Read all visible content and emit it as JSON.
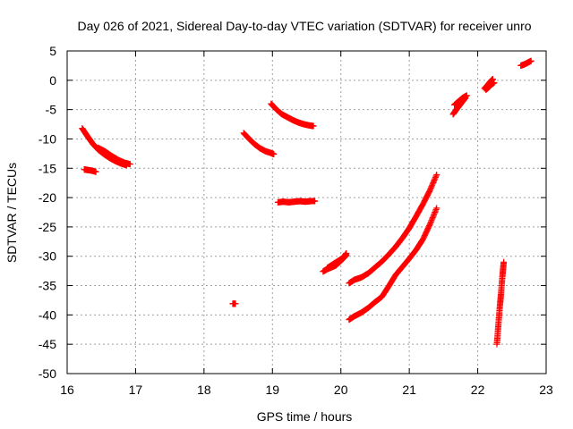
{
  "chart_data": {
    "type": "scatter",
    "title": "Day 026 of 2021, Sidereal Day-to-day VTEC variation (SDTVAR) for receiver unro",
    "xlabel": "GPS time / hours",
    "ylabel": "SDTVAR / TECUs",
    "xlim": [
      16,
      23
    ],
    "ylim": [
      -50,
      5
    ],
    "xticks": [
      16,
      17,
      18,
      19,
      20,
      21,
      22,
      23
    ],
    "yticks": [
      5,
      0,
      -5,
      -10,
      -15,
      -20,
      -25,
      -30,
      -35,
      -40,
      -45,
      -50
    ],
    "grid": true,
    "legend": "none",
    "marker": "plus",
    "color": "#ff0000",
    "series": [
      {
        "x": [
          16.22,
          16.3,
          16.38,
          16.46,
          16.55,
          16.63,
          16.71,
          16.79,
          16.87
        ],
        "y": [
          -8.2,
          -9.6,
          -10.9,
          -11.9,
          -12.7,
          -13.3,
          -13.8,
          -14.2,
          -14.5
        ]
      },
      {
        "x": [
          16.45,
          16.55,
          16.65,
          16.75,
          16.85,
          16.92
        ],
        "y": [
          -11.5,
          -12.1,
          -12.9,
          -13.6,
          -14.1,
          -14.3
        ]
      },
      {
        "x": [
          16.25,
          16.3,
          16.36,
          16.42
        ],
        "y": [
          -15.2,
          -15.3,
          -15.4,
          -15.6
        ]
      },
      {
        "x": [
          18.42,
          18.46
        ],
        "y": [
          -38.1,
          -38.1
        ]
      },
      {
        "x": [
          18.58,
          18.66,
          18.74,
          18.82,
          18.9,
          18.98,
          19.02
        ],
        "y": [
          -9.0,
          -10.0,
          -10.9,
          -11.6,
          -12.1,
          -12.4,
          -12.6
        ]
      },
      {
        "x": [
          18.98,
          19.06,
          19.14,
          19.22,
          19.3,
          19.38,
          19.46,
          19.54,
          19.6
        ],
        "y": [
          -4.0,
          -5.0,
          -5.8,
          -6.3,
          -6.8,
          -7.2,
          -7.5,
          -7.7,
          -7.8
        ]
      },
      {
        "x": [
          19.08,
          19.16,
          19.24,
          19.32,
          19.4,
          19.48,
          19.56,
          19.62
        ],
        "y": [
          -20.8,
          -20.7,
          -20.8,
          -20.7,
          -20.6,
          -20.7,
          -20.6,
          -20.6
        ]
      },
      {
        "x": [
          19.74,
          19.8,
          19.86,
          19.92,
          19.98,
          20.04,
          20.08
        ],
        "y": [
          -32.6,
          -32.2,
          -31.9,
          -31.6,
          -31.0,
          -30.3,
          -29.8
        ]
      },
      {
        "x": [
          19.8,
          19.88,
          19.96,
          20.04,
          20.08
        ],
        "y": [
          -32.0,
          -31.4,
          -30.8,
          -30.2,
          -29.5
        ]
      },
      {
        "x": [
          20.12,
          20.2,
          20.3,
          20.4,
          20.5,
          20.6,
          20.7,
          20.8,
          20.9,
          21.0,
          21.1,
          21.2,
          21.3,
          21.4
        ],
        "y": [
          -34.6,
          -34.0,
          -33.6,
          -32.9,
          -31.9,
          -30.9,
          -29.7,
          -28.4,
          -26.9,
          -25.2,
          -23.2,
          -21.1,
          -18.8,
          -16.1
        ]
      },
      {
        "x": [
          20.12,
          20.2,
          20.3,
          20.4,
          20.5,
          20.6,
          20.7,
          20.8,
          20.9,
          21.0,
          21.1,
          21.2,
          21.3,
          21.4
        ],
        "y": [
          -40.8,
          -40.2,
          -39.6,
          -38.8,
          -37.8,
          -36.9,
          -35.1,
          -33.2,
          -31.8,
          -30.4,
          -28.9,
          -27.1,
          -24.6,
          -21.8
        ]
      },
      {
        "x": [
          21.64,
          21.7,
          21.76,
          21.82
        ],
        "y": [
          -5.8,
          -4.8,
          -3.9,
          -3.0
        ]
      },
      {
        "x": [
          21.66,
          21.72,
          21.78,
          21.84
        ],
        "y": [
          -4.2,
          -3.6,
          -3.0,
          -2.6
        ]
      },
      {
        "x": [
          22.1,
          22.14,
          22.18,
          22.22
        ],
        "y": [
          -1.4,
          -0.9,
          -0.3,
          0.2
        ]
      },
      {
        "x": [
          22.12,
          22.16,
          22.2,
          22.24
        ],
        "y": [
          -1.6,
          -1.2,
          -0.7,
          -0.4
        ]
      },
      {
        "x": [
          22.28,
          22.3,
          22.32,
          22.34,
          22.36,
          22.38
        ],
        "y": [
          -45.0,
          -42.0,
          -39.0,
          -36.5,
          -33.5,
          -31.0
        ]
      },
      {
        "x": [
          22.63,
          22.68,
          22.73,
          22.78
        ],
        "y": [
          2.5,
          2.7,
          3.0,
          3.3
        ]
      }
    ]
  }
}
